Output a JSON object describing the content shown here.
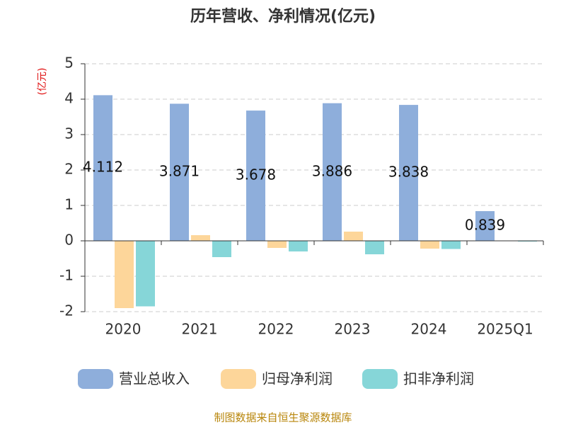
{
  "chart_data": {
    "type": "bar",
    "title": "历年营收、净利情况(亿元)",
    "y_label": "(亿元)",
    "categories": [
      "2020",
      "2021",
      "2022",
      "2023",
      "2024",
      "2025Q1"
    ],
    "series": [
      {
        "name": "营业总收入",
        "color": "#8eaedb",
        "values": [
          4.112,
          3.871,
          3.678,
          3.886,
          3.838,
          0.839
        ],
        "labels": true
      },
      {
        "name": "归母净利润",
        "color": "#fdd69a",
        "values": [
          -1.9,
          0.16,
          -0.2,
          0.26,
          -0.22,
          -0.01
        ]
      },
      {
        "name": "扣非净利润",
        "color": "#86d6d8",
        "values": [
          -1.85,
          -0.46,
          -0.3,
          -0.38,
          -0.23,
          -0.02
        ]
      }
    ],
    "ylim": [
      -2,
      5
    ],
    "yticks": [
      -2,
      -1,
      0,
      1,
      2,
      3,
      4,
      5
    ],
    "grid": true,
    "source": "制图数据来自恒生聚源数据库"
  }
}
